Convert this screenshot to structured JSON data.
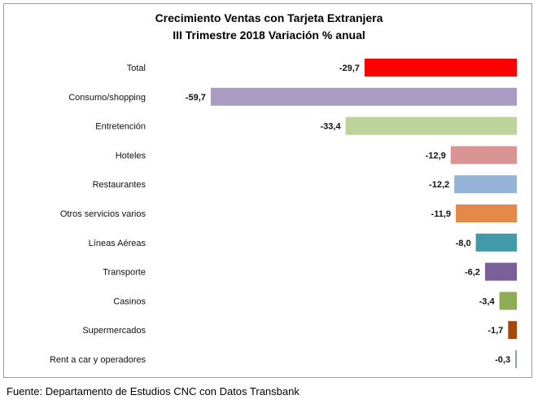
{
  "chart_data": {
    "type": "bar",
    "orientation": "horizontal",
    "title": "Crecimiento Ventas con Tarjeta Extranjera",
    "subtitle": "III Trimestre 2018 Variación % anual",
    "xlabel": "",
    "ylabel": "",
    "xlim": [
      -60,
      0
    ],
    "grid": false,
    "legend": "none",
    "categories": [
      "Total",
      "Consumo/shopping",
      "Entretención",
      "Hoteles",
      "Restaurantes",
      "Otros servicios varios",
      "Líneas Aéreas",
      "Transporte",
      "Casinos",
      "Supermercados",
      "Rent a car y operadores"
    ],
    "values": [
      -29.7,
      -59.7,
      -33.4,
      -12.9,
      -12.2,
      -11.9,
      -8.0,
      -6.2,
      -3.4,
      -1.7,
      -0.3
    ],
    "value_labels": [
      "-29,7",
      "-59,7",
      "-33,4",
      "-12,9",
      "-12,2",
      "-11,9",
      "-8,0",
      "-6,2",
      "-3,4",
      "-1,7",
      "-0,3"
    ],
    "colors": [
      "#ff0000",
      "#a99bc1",
      "#bcd49a",
      "#d99594",
      "#95b3d7",
      "#e4894a",
      "#4299aa",
      "#7b5f98",
      "#8ead55",
      "#a3490c",
      "#7f9fb0"
    ]
  },
  "source": "Fuente: Departamento de Estudios CNC con Datos Transbank"
}
